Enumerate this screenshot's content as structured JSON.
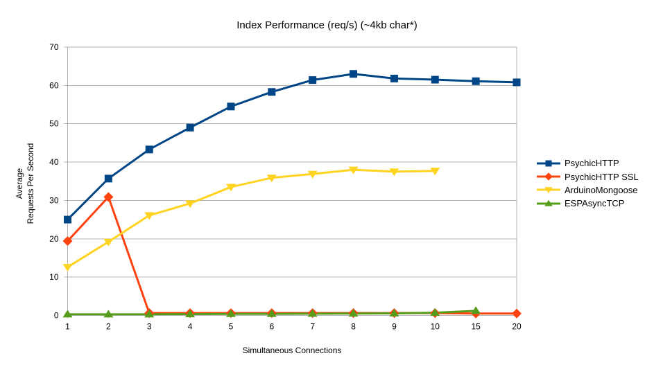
{
  "chart_data": {
    "type": "line",
    "title": "Index Performance (req/s) (~4kb char*)",
    "xlabel": "Simultaneous Connections",
    "ylabel_lines": [
      "Average",
      "Requests Per Second"
    ],
    "ylim": [
      0,
      70
    ],
    "y_ticks": [
      0,
      10,
      20,
      30,
      40,
      50,
      60,
      70
    ],
    "categories": [
      "1",
      "2",
      "3",
      "4",
      "5",
      "6",
      "7",
      "8",
      "9",
      "10",
      "15",
      "20"
    ],
    "grid": "horizontal",
    "grid_color": "#b3b3b3",
    "axis_color": "#b3b3b3",
    "text_color": "#000000",
    "background_color": "#ffffff",
    "legend_position": "right",
    "series": [
      {
        "name": "PsychicHTTP",
        "color": "#004586",
        "marker": "square",
        "values": [
          25.0,
          35.7,
          43.3,
          49.0,
          54.5,
          58.3,
          61.4,
          63.0,
          61.8,
          61.5,
          61.1,
          60.8
        ]
      },
      {
        "name": "PsychicHTTP SSL",
        "color": "#ff420e",
        "marker": "diamond",
        "values": [
          19.4,
          30.9,
          0.6,
          0.6,
          0.6,
          0.6,
          0.6,
          0.6,
          0.6,
          0.6,
          0.5,
          0.5
        ]
      },
      {
        "name": "ArduinoMongoose",
        "color": "#ffd320",
        "marker": "triangle-down",
        "values": [
          12.6,
          19.2,
          26.1,
          29.2,
          33.5,
          35.9,
          36.9,
          38.0,
          37.5,
          37.7
        ]
      },
      {
        "name": "ESPAsyncTCP",
        "color": "#579d1c",
        "marker": "triangle-up",
        "values": [
          0.3,
          0.3,
          0.3,
          0.35,
          0.4,
          0.4,
          0.45,
          0.5,
          0.55,
          0.7,
          1.2
        ]
      }
    ]
  }
}
